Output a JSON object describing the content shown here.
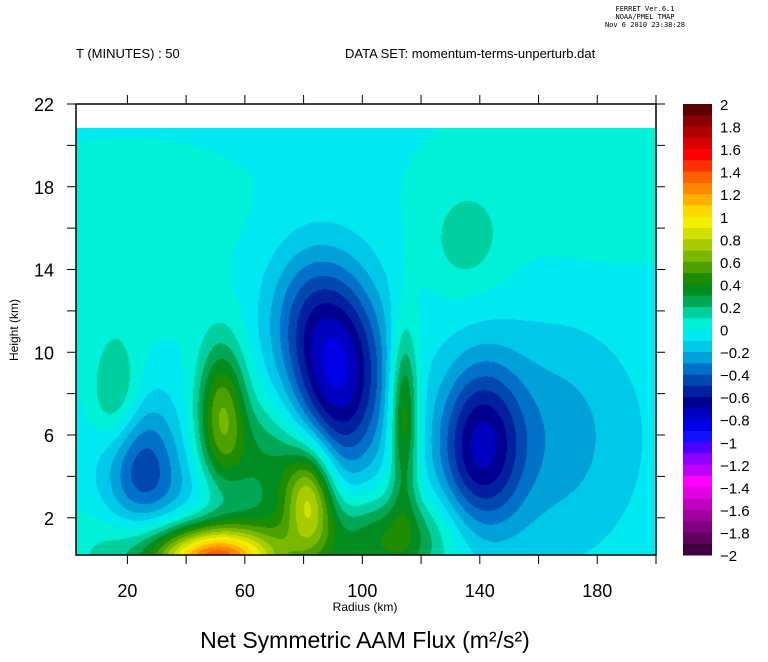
{
  "header": {
    "time_label": "T (MINUTES) : 50",
    "dataset_label": "DATA SET: momentum-terms-unperturb.dat",
    "stamp": [
      "FERRET  Ver.6.1",
      "NOAA/PMEL TMAP",
      "Nov  6 2010 23:38:28"
    ]
  },
  "chart_data": {
    "type": "heatmap",
    "subtype": "filled-contour",
    "title": "Net Symmetric AAM Flux (m²/s²)",
    "xlabel": "Radius (km)",
    "ylabel": "Height (km)",
    "xlim": [
      2.5,
      200
    ],
    "ylim": [
      0.2,
      22
    ],
    "data_ylim": [
      0.2,
      21
    ],
    "xticks": [
      20,
      40,
      60,
      80,
      100,
      120,
      140,
      160,
      180,
      200
    ],
    "xtick_labels": [
      "20",
      "60",
      "100",
      "140",
      "180"
    ],
    "xtick_label_values": [
      20,
      60,
      100,
      140,
      180
    ],
    "yticks": [
      2,
      4,
      6,
      8,
      10,
      12,
      14,
      16,
      18,
      20,
      22
    ],
    "ytick_labels": [
      "2",
      "6",
      "10",
      "14",
      "18",
      "22"
    ],
    "ytick_label_values": [
      2,
      6,
      10,
      14,
      18,
      22
    ],
    "colorbar": {
      "min": -2,
      "max": 2,
      "step": 0.1,
      "labels": [
        "2",
        "1.8",
        "1.6",
        "1.4",
        "1.2",
        "1",
        "0.8",
        "0.6",
        "0.4",
        "0.2",
        "0",
        "-0.2",
        "-0.4",
        "-0.6",
        "-0.8",
        "-1",
        "-1.2",
        "-1.4",
        "-1.6",
        "-1.8",
        "-2"
      ],
      "colors_top_to_bottom": [
        "#5a0000",
        "#8b0000",
        "#b00000",
        "#d80000",
        "#ff0000",
        "#ff3000",
        "#ff6000",
        "#ff8800",
        "#ffb000",
        "#ffd800",
        "#f0f000",
        "#d0e000",
        "#a8cc00",
        "#78b800",
        "#4ca000",
        "#1e8c00",
        "#008c20",
        "#00a855",
        "#00d0a0",
        "#00f0d8",
        "#00e8f0",
        "#00c8e8",
        "#00a0d8",
        "#0070c8",
        "#0048b0",
        "#0020a0",
        "#000090",
        "#0000c0",
        "#0000e8",
        "#1010ff",
        "#5000ff",
        "#9000ff",
        "#c000ff",
        "#ff00ff",
        "#e000e0",
        "#c000c0",
        "#a000a0",
        "#800080",
        "#600060",
        "#400040"
      ]
    },
    "base_value": -0.03,
    "features": [
      {
        "kind": "positive",
        "r": 20,
        "z": 17,
        "sr": 40,
        "sz": 3,
        "value": 0.06
      },
      {
        "kind": "positive",
        "r": 170,
        "z": 18,
        "sr": 40,
        "sz": 4,
        "value": 0.07
      },
      {
        "kind": "positive",
        "r": 15,
        "z": 12,
        "sr": 20,
        "sz": 1.5,
        "value": 0.06
      },
      {
        "kind": "negative-core",
        "r": 92,
        "z": 9,
        "sr": 11,
        "sz": 3.3,
        "value": -0.75
      },
      {
        "kind": "negative-core",
        "r": 80,
        "z": 12,
        "sr": 10,
        "sz": 2.5,
        "value": -0.25
      },
      {
        "kind": "negative-core",
        "r": 140,
        "z": 5.5,
        "sr": 10,
        "sz": 2.8,
        "value": -0.62
      },
      {
        "kind": "negative",
        "r": 165,
        "z": 6,
        "sr": 20,
        "sz": 4,
        "value": -0.22
      },
      {
        "kind": "negative",
        "r": 25,
        "z": 4.5,
        "sr": 9,
        "sz": 2.3,
        "value": -0.42
      },
      {
        "kind": "negative",
        "r": 45,
        "z": 2.5,
        "sr": 15,
        "sz": 1.5,
        "value": -0.15
      },
      {
        "kind": "positive-max",
        "r": 50,
        "z": 0,
        "sr": 13,
        "sz": 1.0,
        "value": 1.0
      },
      {
        "kind": "positive",
        "r": 50,
        "z": 0.4,
        "sr": 28,
        "sz": 1.5,
        "value": 0.45
      },
      {
        "kind": "positive",
        "r": 52,
        "z": 7,
        "sr": 6,
        "sz": 2.5,
        "value": 0.6
      },
      {
        "kind": "positive",
        "r": 82,
        "z": 3,
        "sr": 6,
        "sz": 1.8,
        "value": 0.72
      },
      {
        "kind": "positive",
        "r": 68,
        "z": 4.5,
        "sr": 10,
        "sz": 2.2,
        "value": 0.35
      },
      {
        "kind": "positive",
        "r": 114,
        "z": 7,
        "sr": 3.5,
        "sz": 3,
        "value": 0.55
      },
      {
        "kind": "positive",
        "r": 110,
        "z": 1,
        "sr": 15,
        "sz": 1.6,
        "value": 0.4
      },
      {
        "kind": "positive",
        "r": 16,
        "z": 8,
        "sr": 6,
        "sz": 1.8,
        "value": 0.28
      },
      {
        "kind": "positive",
        "r": 135,
        "z": 15.5,
        "sr": 9,
        "sz": 1.8,
        "value": 0.15
      }
    ]
  }
}
